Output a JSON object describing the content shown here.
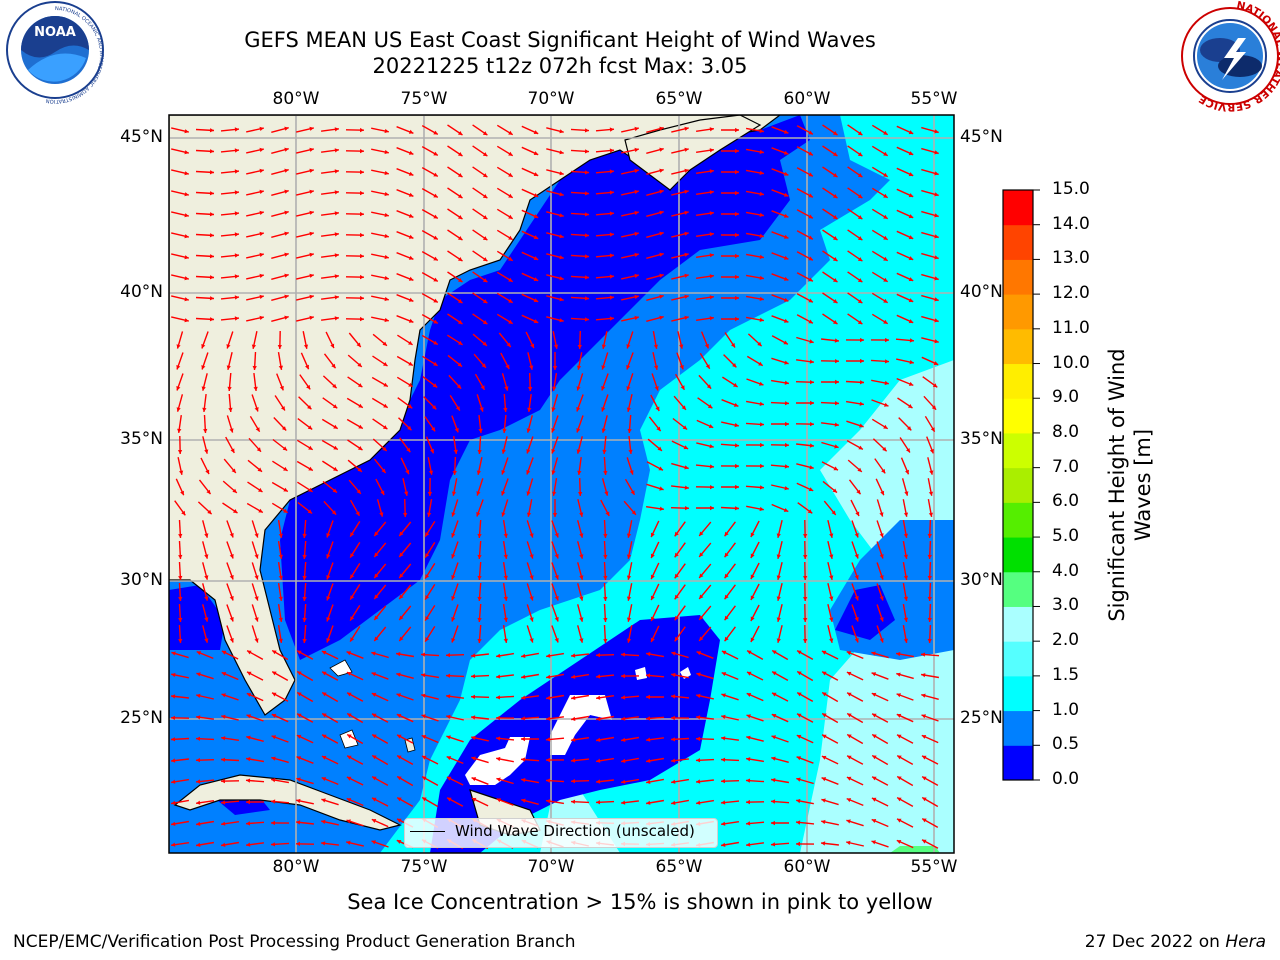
{
  "title": {
    "line1": "GEFS MEAN US East Coast Significant Height of Wind Waves",
    "line2": "20221225 t12z 072h fcst   Max: 3.05"
  },
  "chart_data": {
    "type": "heatmap",
    "title": "GEFS MEAN US East Coast Significant Height of Wind Waves",
    "subtitle": "20221225 t12z 072h fcst   Max: 3.05",
    "max_value": 3.05,
    "lon_ticks": [
      "80°W",
      "75°W",
      "70°W",
      "65°W",
      "60°W",
      "55°W"
    ],
    "lat_ticks": [
      "45°N",
      "40°N",
      "35°N",
      "30°N",
      "25°N"
    ],
    "lon_range": [
      -85,
      -54.5
    ],
    "lat_range": [
      20.5,
      46
    ],
    "colorbar": {
      "label": "Significant Height of Wind Waves [m]",
      "ticks": [
        "15.0",
        "14.0",
        "13.0",
        "12.0",
        "11.0",
        "10.0",
        "9.0",
        "8.0",
        "7.0",
        "6.0",
        "5.0",
        "4.0",
        "3.0",
        "2.0",
        "1.5",
        "1.0",
        "0.5",
        "0.0"
      ],
      "range": [
        0,
        15
      ],
      "colors": [
        "#0000ff",
        "#0080ff",
        "#00ffff",
        "#55ffff",
        "#aaffff",
        "#55ff80",
        "#00e000",
        "#55ee00",
        "#aaee00",
        "#ccff00",
        "#ffff00",
        "#ffee00",
        "#ffbb00",
        "#ff9900",
        "#ff7700",
        "#ff4400",
        "#ff0000"
      ]
    },
    "legend": {
      "entry": "Wind Wave Direction (unscaled)",
      "placement": "bottom-center"
    },
    "colors": {
      "land": "#efefde",
      "grid": "#b0b0b0",
      "arrows": "#ff0000"
    }
  },
  "caption": "Sea Ice Concentration > 15% is shown in pink to yellow",
  "footer": {
    "left": "NCEP/EMC/Verification Post Processing Product Generation Branch",
    "right_date": "27 Dec 2022 on ",
    "right_host": "Hera"
  },
  "logos": {
    "noaa": {
      "text": "NOAA",
      "ring": "NATIONAL OCEANIC AND ATMOSPHERIC ADMINISTRATION"
    },
    "nws": {
      "ring": "NATIONAL WEATHER SERVICE"
    }
  }
}
